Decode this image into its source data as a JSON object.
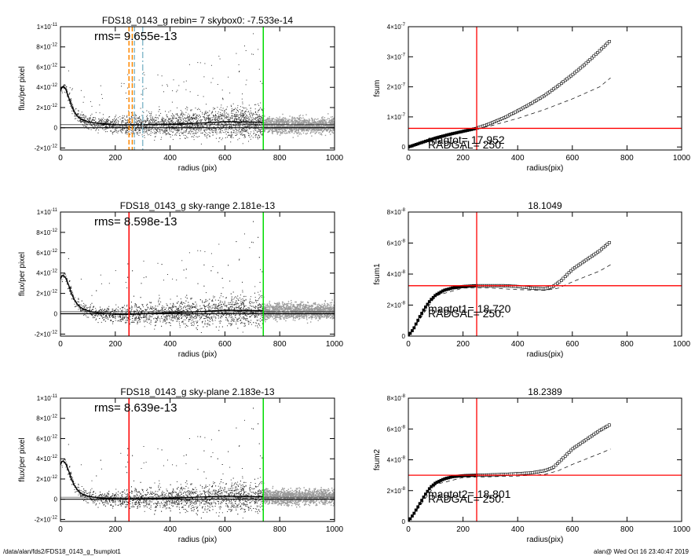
{
  "footer": {
    "path": "/data/alan/fds2/FDS18_0143_g_fsumplot1",
    "user_time": "alan@  Wed Oct 16 23:40:47 2019"
  },
  "colors": {
    "background": "#ffffff",
    "axis": "#000000",
    "scatter_dark": "#333333",
    "scatter_light": "#9a9a9a",
    "red_marker": "#ff0000",
    "green_marker": "#00dd00",
    "orange_dash": "#ff8800",
    "blue_dash": "#88bbcc"
  },
  "chart_data": [
    {
      "id": "profile1",
      "type": "scatter",
      "title": "FDS18_0143_g rebin= 7    skybox0: -7.533e-14",
      "annotation": "rms= 9.655e-13",
      "xlabel": "radius (pix)",
      "ylabel": "flux/per pixel",
      "xlim": [
        0,
        1000
      ],
      "ylim": [
        -2.2e-12,
        1e-11
      ],
      "xticks": [
        0,
        200,
        400,
        600,
        800,
        1000
      ],
      "xtick_labels": [
        "0",
        "200",
        "400",
        "600",
        "800",
        "1000"
      ],
      "yticks": [
        -2e-12,
        0,
        2e-12,
        4e-12,
        6e-12,
        8e-12,
        1e-11
      ],
      "ytick_labels": [
        {
          "m": "-2×10",
          "e": "-12"
        },
        {
          "m": "0",
          "e": ""
        },
        {
          "m": "2×10",
          "e": "-12"
        },
        {
          "m": "4×10",
          "e": "-12"
        },
        {
          "m": "6×10",
          "e": "-12"
        },
        {
          "m": "8×10",
          "e": "-12"
        },
        {
          "m": "1×10",
          "e": "-11"
        }
      ],
      "profile_curve": {
        "x": [
          0,
          5,
          10,
          20,
          30,
          40,
          50,
          60,
          70,
          80,
          90,
          100,
          120,
          150,
          200,
          250,
          300,
          400,
          500,
          600,
          700,
          740
        ],
        "y": [
          3.6e-12,
          4e-12,
          4.1e-12,
          3.8e-12,
          3e-12,
          2.2e-12,
          1.6e-12,
          1.2e-12,
          9.5e-13,
          8e-13,
          7e-13,
          6e-13,
          5e-13,
          4e-13,
          3e-13,
          3e-13,
          3e-13,
          3.5e-13,
          4.5e-13,
          6e-13,
          5.5e-13,
          5.5e-13
        ]
      },
      "zero_line": 0,
      "sky_band": [
        3e-13
      ],
      "vlines": [
        {
          "x": 250,
          "color": "#ff8800",
          "style": "dashed"
        },
        {
          "x": 262,
          "color": "#ff8800",
          "style": "dashed"
        },
        {
          "x": 270,
          "color": "#88bbcc",
          "style": "dashed"
        },
        {
          "x": 300,
          "color": "#88bbcc",
          "style": "dashdot"
        },
        {
          "x": 740,
          "color": "#00dd00",
          "style": "solid"
        }
      ]
    },
    {
      "id": "fsum",
      "type": "line",
      "title": "",
      "xlabel": "radius(pix)",
      "ylabel": "fsum",
      "xlim": [
        0,
        1000
      ],
      "ylim": [
        -1e-08,
        4e-07
      ],
      "xticks": [
        0,
        200,
        400,
        600,
        800,
        1000
      ],
      "xtick_labels": [
        "0",
        "200",
        "400",
        "600",
        "800",
        "1000"
      ],
      "yticks": [
        0,
        1e-07,
        2e-07,
        3e-07,
        4e-07
      ],
      "ytick_labels": [
        {
          "m": "0",
          "e": ""
        },
        {
          "m": "1×10",
          "e": "-7"
        },
        {
          "m": "2×10",
          "e": "-7"
        },
        {
          "m": "3×10",
          "e": "-7"
        },
        {
          "m": "4×10",
          "e": "-7"
        }
      ],
      "curve": {
        "x": [
          0,
          50,
          100,
          150,
          200,
          250,
          300,
          350,
          400,
          450,
          500,
          550,
          600,
          650,
          700,
          740
        ],
        "y": [
          0,
          1.5e-08,
          3e-08,
          4.2e-08,
          5.2e-08,
          6.2e-08,
          7.8e-08,
          9.7e-08,
          1.2e-07,
          1.45e-07,
          1.72e-07,
          2.05e-07,
          2.4e-07,
          2.78e-07,
          3.2e-07,
          3.55e-07
        ]
      },
      "dashed_curve": {
        "x": [
          0,
          100,
          200,
          250,
          300,
          400,
          500,
          600,
          700,
          740
        ],
        "y": [
          0,
          2.5e-08,
          5e-08,
          6e-08,
          7e-08,
          9.5e-08,
          1.25e-07,
          1.6e-07,
          2e-07,
          2.3e-07
        ]
      },
      "hline": 6.2e-08,
      "vline": 250,
      "labels": [
        "magtot= 17.952",
        "RADGAL=   250."
      ]
    },
    {
      "id": "profile2",
      "type": "scatter",
      "title": "FDS18_0143_g sky-range  2.181e-13",
      "annotation": "rms= 8.598e-13",
      "xlabel": "radius (pix)",
      "ylabel": "flux/per pixel",
      "xlim": [
        0,
        1000
      ],
      "ylim": [
        -2.2e-12,
        1e-11
      ],
      "xticks": [
        0,
        200,
        400,
        600,
        800,
        1000
      ],
      "xtick_labels": [
        "0",
        "200",
        "400",
        "600",
        "800",
        "1000"
      ],
      "yticks": [
        -2e-12,
        0,
        2e-12,
        4e-12,
        6e-12,
        8e-12,
        1e-11
      ],
      "ytick_labels": [
        {
          "m": "-2×10",
          "e": "-12"
        },
        {
          "m": "0",
          "e": ""
        },
        {
          "m": "2×10",
          "e": "-12"
        },
        {
          "m": "4×10",
          "e": "-12"
        },
        {
          "m": "6×10",
          "e": "-12"
        },
        {
          "m": "8×10",
          "e": "-12"
        },
        {
          "m": "1×10",
          "e": "-11"
        }
      ],
      "profile_curve": {
        "x": [
          0,
          5,
          10,
          20,
          30,
          40,
          50,
          60,
          70,
          80,
          90,
          100,
          120,
          150,
          200,
          250,
          300,
          400,
          500,
          600,
          700,
          740
        ],
        "y": [
          3.4e-12,
          3.7e-12,
          3.8e-12,
          3.5e-12,
          2.8e-12,
          2e-12,
          1.4e-12,
          1e-12,
          7e-13,
          5e-13,
          4e-13,
          3e-13,
          1.5e-13,
          5e-14,
          -5e-14,
          -5e-14,
          0.0,
          1e-13,
          2e-13,
          3.5e-13,
          3e-13,
          3e-13
        ]
      },
      "zero_line": 0,
      "sky_band": [
        2e-13
      ],
      "vlines": [
        {
          "x": 250,
          "color": "#ff0000",
          "style": "solid"
        },
        {
          "x": 740,
          "color": "#00dd00",
          "style": "solid"
        }
      ]
    },
    {
      "id": "fsum1",
      "type": "line",
      "title": "18.1049",
      "xlabel": "radius(pix)",
      "ylabel": "fsum1",
      "xlim": [
        0,
        1000
      ],
      "ylim": [
        0,
        8e-08
      ],
      "xticks": [
        0,
        200,
        400,
        600,
        800,
        1000
      ],
      "xtick_labels": [
        "0",
        "200",
        "400",
        "600",
        "800",
        "1000"
      ],
      "yticks": [
        0,
        2e-08,
        4e-08,
        6e-08,
        8e-08
      ],
      "ytick_labels": [
        {
          "m": "0",
          "e": ""
        },
        {
          "m": "2×10",
          "e": "-8"
        },
        {
          "m": "4×10",
          "e": "-8"
        },
        {
          "m": "6×10",
          "e": "-8"
        },
        {
          "m": "8×10",
          "e": "-8"
        }
      ],
      "curve": {
        "x": [
          0,
          20,
          40,
          60,
          80,
          100,
          130,
          160,
          200,
          250,
          300,
          350,
          400,
          450,
          500,
          530,
          560,
          600,
          650,
          700,
          740
        ],
        "y": [
          0,
          5e-09,
          1.2e-08,
          1.8e-08,
          2.3e-08,
          2.65e-08,
          2.95e-08,
          3.1e-08,
          3.2e-08,
          3.25e-08,
          3.25e-08,
          3.25e-08,
          3.2e-08,
          3.1e-08,
          3.05e-08,
          3.2e-08,
          3.6e-08,
          4.3e-08,
          4.9e-08,
          5.5e-08,
          6.1e-08
        ]
      },
      "dashed_curve": {
        "x": [
          0,
          100,
          200,
          300,
          400,
          500,
          550,
          600,
          700,
          740
        ],
        "y": [
          0,
          2.6e-08,
          3.1e-08,
          3.1e-08,
          3e-08,
          2.95e-08,
          3.1e-08,
          3.5e-08,
          4.2e-08,
          4.6e-08
        ]
      },
      "hline": 3.25e-08,
      "vline": 250,
      "labels": [
        "magtot1= 18.720",
        "RADGAL=   250."
      ]
    },
    {
      "id": "profile3",
      "type": "scatter",
      "title": "FDS18_0143_g sky-plane  2.183e-13",
      "annotation": "rms= 8.639e-13",
      "xlabel": "radius (pix)",
      "ylabel": "flux/per pixel",
      "xlim": [
        0,
        1000
      ],
      "ylim": [
        -2.2e-12,
        1e-11
      ],
      "xticks": [
        0,
        200,
        400,
        600,
        800,
        1000
      ],
      "xtick_labels": [
        "0",
        "200",
        "400",
        "600",
        "800",
        "1000"
      ],
      "yticks": [
        -2e-12,
        0,
        2e-12,
        4e-12,
        6e-12,
        8e-12,
        1e-11
      ],
      "ytick_labels": [
        {
          "m": "-2×10",
          "e": "-12"
        },
        {
          "m": "0",
          "e": ""
        },
        {
          "m": "2×10",
          "e": "-12"
        },
        {
          "m": "4×10",
          "e": "-12"
        },
        {
          "m": "6×10",
          "e": "-12"
        },
        {
          "m": "8×10",
          "e": "-12"
        },
        {
          "m": "1×10",
          "e": "-11"
        }
      ],
      "profile_curve": {
        "x": [
          0,
          5,
          10,
          20,
          30,
          40,
          50,
          60,
          70,
          80,
          90,
          100,
          120,
          150,
          200,
          250,
          300,
          400,
          500,
          600,
          700,
          740
        ],
        "y": [
          3.4e-12,
          3.7e-12,
          3.8e-12,
          3.5e-12,
          2.8e-12,
          2e-12,
          1.4e-12,
          1e-12,
          7e-13,
          5e-13,
          4e-13,
          3e-13,
          2e-13,
          1e-13,
          5e-14,
          5e-14,
          5e-14,
          1e-13,
          2e-13,
          3e-13,
          2.5e-13,
          2.5e-13
        ]
      },
      "zero_line": 0,
      "sky_band": [
        2e-13
      ],
      "vlines": [
        {
          "x": 250,
          "color": "#ff0000",
          "style": "solid"
        },
        {
          "x": 740,
          "color": "#00dd00",
          "style": "solid"
        }
      ]
    },
    {
      "id": "fsum2",
      "type": "line",
      "title": "18.2389",
      "xlabel": "radius(pix)",
      "ylabel": "fsum2",
      "xlim": [
        0,
        1000
      ],
      "ylim": [
        0,
        8e-08
      ],
      "xticks": [
        0,
        200,
        400,
        600,
        800,
        1000
      ],
      "xtick_labels": [
        "0",
        "200",
        "400",
        "600",
        "800",
        "1000"
      ],
      "yticks": [
        0,
        2e-08,
        4e-08,
        6e-08,
        8e-08
      ],
      "ytick_labels": [
        {
          "m": "0",
          "e": ""
        },
        {
          "m": "2×10",
          "e": "-8"
        },
        {
          "m": "4×10",
          "e": "-8"
        },
        {
          "m": "6×10",
          "e": "-8"
        },
        {
          "m": "8×10",
          "e": "-8"
        }
      ],
      "curve": {
        "x": [
          0,
          20,
          40,
          60,
          80,
          100,
          130,
          160,
          200,
          250,
          300,
          350,
          400,
          450,
          500,
          530,
          560,
          600,
          650,
          700,
          740
        ],
        "y": [
          0,
          5e-09,
          1.1e-08,
          1.7e-08,
          2.2e-08,
          2.5e-08,
          2.75e-08,
          2.9e-08,
          2.97e-08,
          3e-08,
          3.02e-08,
          3.05e-08,
          3.1e-08,
          3.15e-08,
          3.3e-08,
          3.5e-08,
          4e-08,
          4.7e-08,
          5.3e-08,
          5.9e-08,
          6.3e-08
        ]
      },
      "dashed_curve": {
        "x": [
          0,
          100,
          200,
          300,
          400,
          500,
          550,
          600,
          700,
          740
        ],
        "y": [
          0,
          2.4e-08,
          2.85e-08,
          2.9e-08,
          2.95e-08,
          3.05e-08,
          3.3e-08,
          3.7e-08,
          4.4e-08,
          4.7e-08
        ]
      },
      "hline": 3e-08,
      "vline": 250,
      "labels": [
        "magtot2= 18.801",
        "RADGAL=   250."
      ]
    }
  ]
}
